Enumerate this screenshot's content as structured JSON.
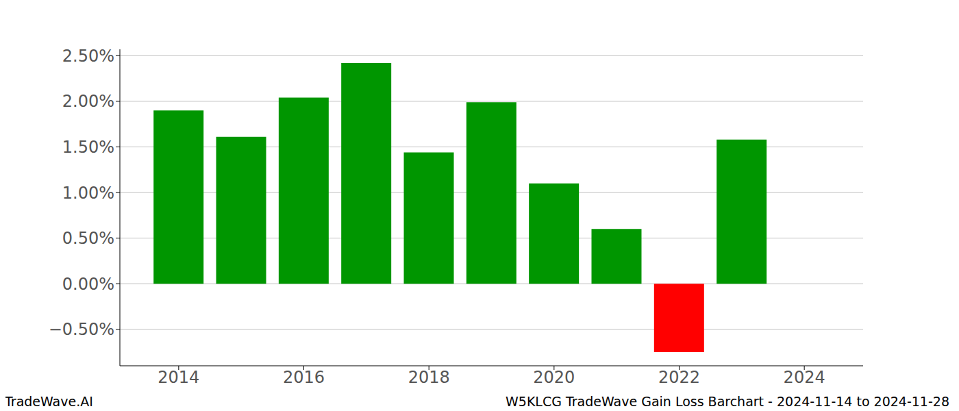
{
  "chart_data": {
    "type": "bar",
    "title": "W5KLCG TradeWave Gain Loss Barchart - 2024-11-14 to 2024-11-28",
    "annotations": [
      "TradeWave.AI"
    ],
    "x": [
      2014,
      2015,
      2016,
      2017,
      2018,
      2019,
      2020,
      2021,
      2022,
      2023,
      2024
    ],
    "values": [
      1.9,
      1.61,
      2.04,
      2.42,
      1.44,
      1.99,
      1.1,
      0.6,
      -0.75,
      1.58,
      0
    ],
    "colors": [
      "#009600",
      "#009600",
      "#009600",
      "#009600",
      "#009600",
      "#009600",
      "#009600",
      "#009600",
      "#ff0000",
      "#009600",
      "#009600"
    ],
    "xlim": [
      2013.06,
      2024.94
    ],
    "xticks": [
      2014,
      2016,
      2018,
      2020,
      2022,
      2024
    ],
    "ylim": [
      -0.9,
      2.57
    ],
    "yticks": [
      {
        "value": -0.5,
        "label": "−0.50%"
      },
      {
        "value": 0,
        "label": "0.00%"
      },
      {
        "value": 0.5,
        "label": "0.50%"
      },
      {
        "value": 1,
        "label": "1.00%"
      },
      {
        "value": 1.5,
        "label": "1.50%"
      },
      {
        "value": 2,
        "label": "2.00%"
      },
      {
        "value": 2.5,
        "label": "2.50%"
      }
    ],
    "grid": true
  }
}
